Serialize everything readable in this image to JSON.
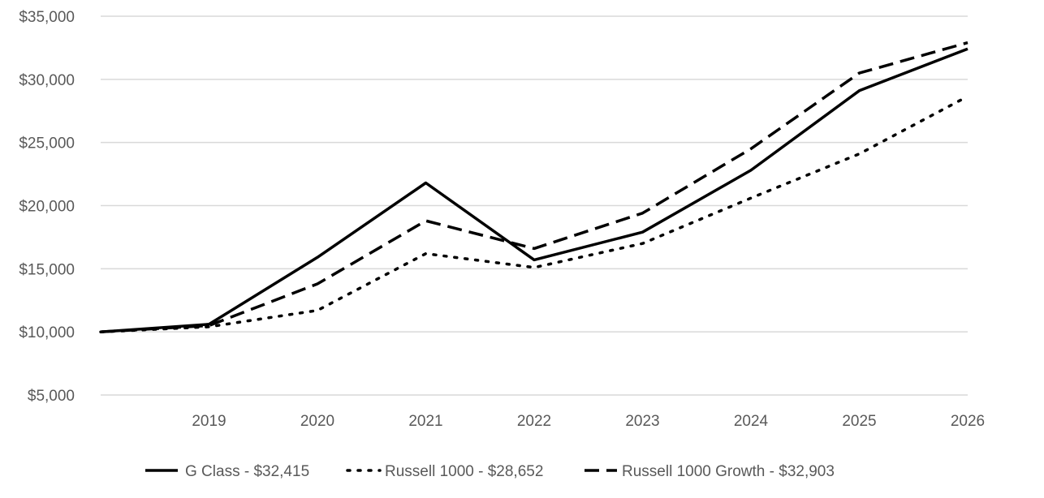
{
  "chart_data": {
    "type": "line",
    "x": [
      "2018",
      "2019",
      "2020",
      "2021",
      "2022",
      "2023",
      "2024",
      "2025",
      "2026"
    ],
    "x_tick_labels": [
      "2019",
      "2020",
      "2021",
      "2022",
      "2023",
      "2024",
      "2025",
      "2026"
    ],
    "y_ticks": [
      5000,
      10000,
      15000,
      20000,
      25000,
      30000,
      35000
    ],
    "y_tick_labels": [
      "$5,000",
      "$10,000",
      "$15,000",
      "$20,000",
      "$25,000",
      "$30,000",
      "$35,000"
    ],
    "ylim": [
      5000,
      35000
    ],
    "grid": true,
    "legend_position": "bottom",
    "series": [
      {
        "name": "G Class - $32,415",
        "style": "solid",
        "color": "#000000",
        "values": [
          10000,
          10600,
          15900,
          21800,
          15700,
          17900,
          22800,
          29100,
          32415
        ]
      },
      {
        "name": "Russell 1000 - $28,652",
        "style": "dotted",
        "color": "#000000",
        "values": [
          10000,
          10400,
          11700,
          16200,
          15100,
          17000,
          20600,
          24100,
          28652
        ]
      },
      {
        "name": "Russell 1000 Growth - $32,903",
        "style": "dashed",
        "color": "#000000",
        "values": [
          10000,
          10500,
          13800,
          18800,
          16600,
          19400,
          24500,
          30500,
          32903
        ]
      }
    ]
  }
}
